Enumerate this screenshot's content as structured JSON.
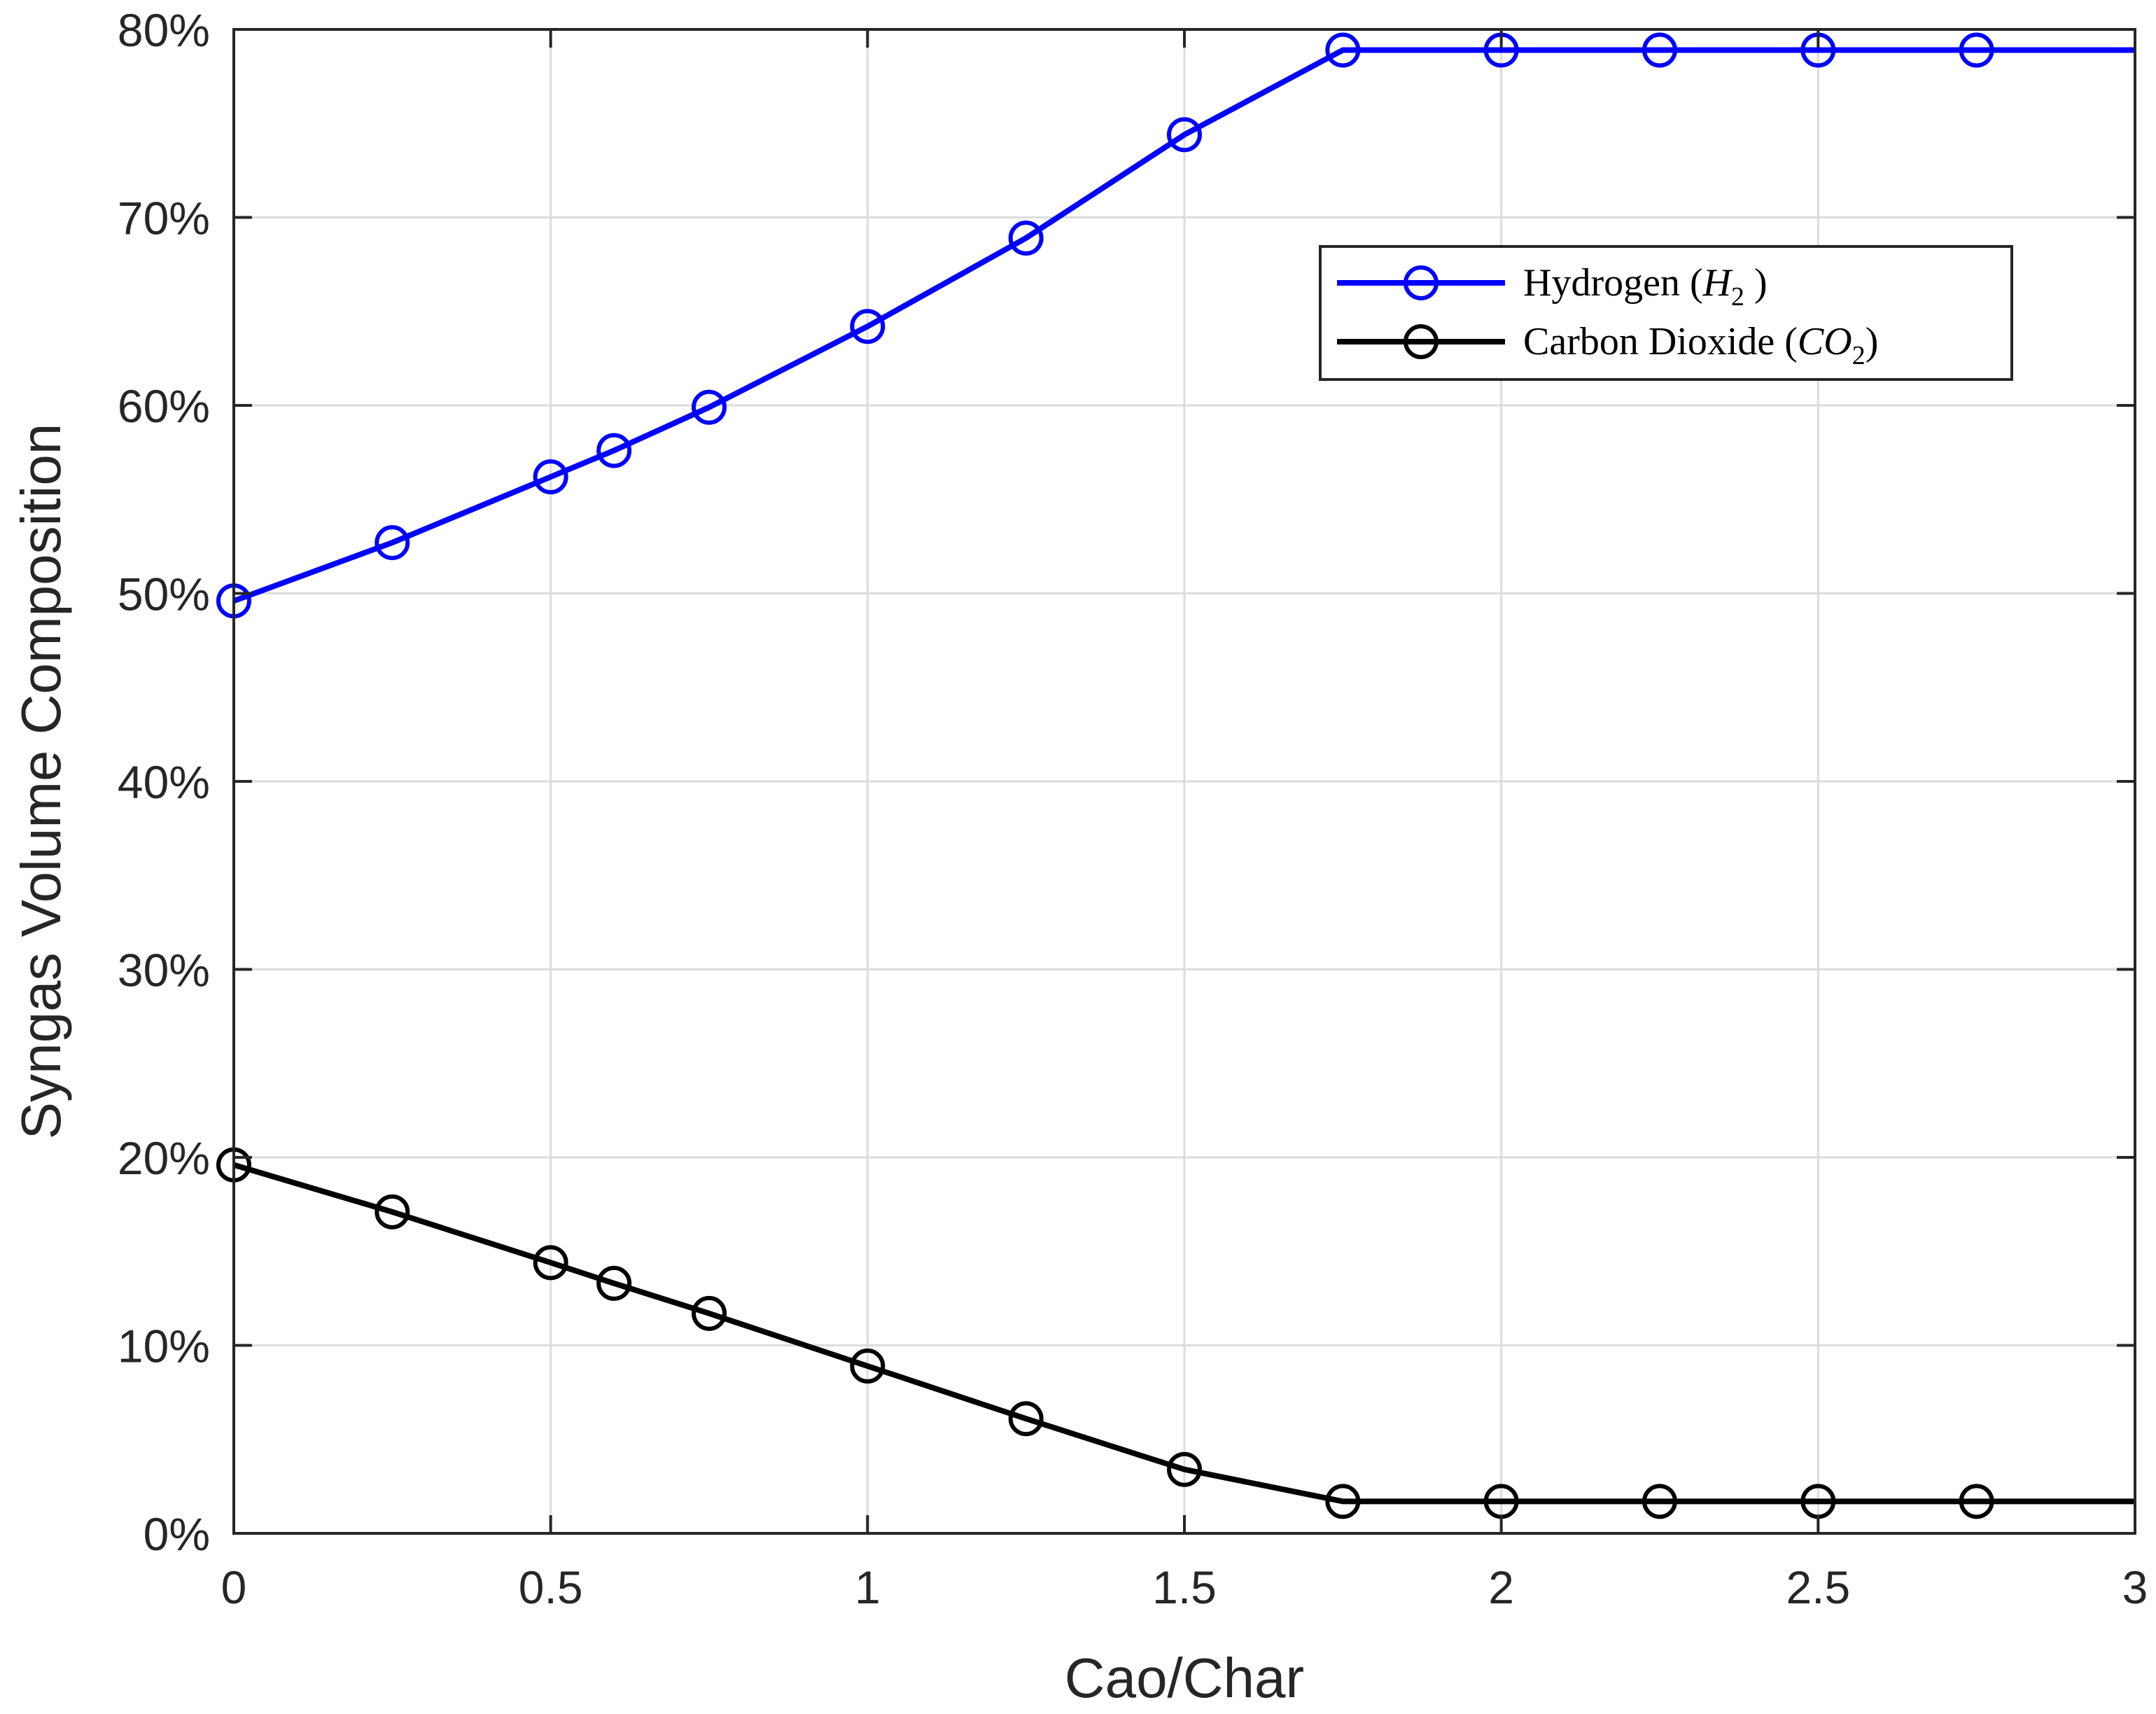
{
  "chart_data": {
    "type": "line",
    "xlabel": "Cao/Char",
    "ylabel": "Syngas Volume Composition",
    "xlim": [
      0,
      3
    ],
    "ylim": [
      0,
      80
    ],
    "x_ticks": [
      0,
      0.5,
      1,
      1.5,
      2,
      2.5,
      3
    ],
    "x_tick_labels": [
      "0",
      "0.5",
      "1",
      "1.5",
      "2",
      "2.5",
      "3"
    ],
    "y_ticks": [
      0,
      10,
      20,
      30,
      40,
      50,
      60,
      70,
      80
    ],
    "y_tick_labels": [
      "0%",
      "10%",
      "20%",
      "30%",
      "40%",
      "50%",
      "60%",
      "70%",
      "80%"
    ],
    "grid": true,
    "legend_position": "top-right",
    "series": [
      {
        "color": "#0000ff",
        "marker": "circle",
        "legend_text": "Hydrogen (",
        "legend_math": "H",
        "legend_sub": "2",
        "legend_tail": " )",
        "x": [
          0,
          0.25,
          0.5,
          0.6,
          0.75,
          1.0,
          1.25,
          1.5,
          1.75,
          2.0,
          2.25,
          2.5,
          2.75
        ],
        "y": [
          49.6,
          52.7,
          56.2,
          57.6,
          59.9,
          64.2,
          68.9,
          74.4,
          78.9,
          78.9,
          78.9,
          78.9,
          78.9
        ],
        "extends_to_x": 3
      },
      {
        "color": "#000000",
        "marker": "circle",
        "legend_text": "Carbon Dioxide (",
        "legend_math": "CO",
        "legend_sub": "2",
        "legend_tail": ")",
        "x": [
          0,
          0.25,
          0.5,
          0.6,
          0.75,
          1.0,
          1.25,
          1.5,
          1.75,
          2.0,
          2.25,
          2.5,
          2.75
        ],
        "y": [
          19.6,
          17.1,
          14.4,
          13.3,
          11.7,
          8.9,
          6.1,
          3.4,
          1.7,
          1.7,
          1.7,
          1.7,
          1.7
        ],
        "extends_to_x": 3
      }
    ]
  }
}
